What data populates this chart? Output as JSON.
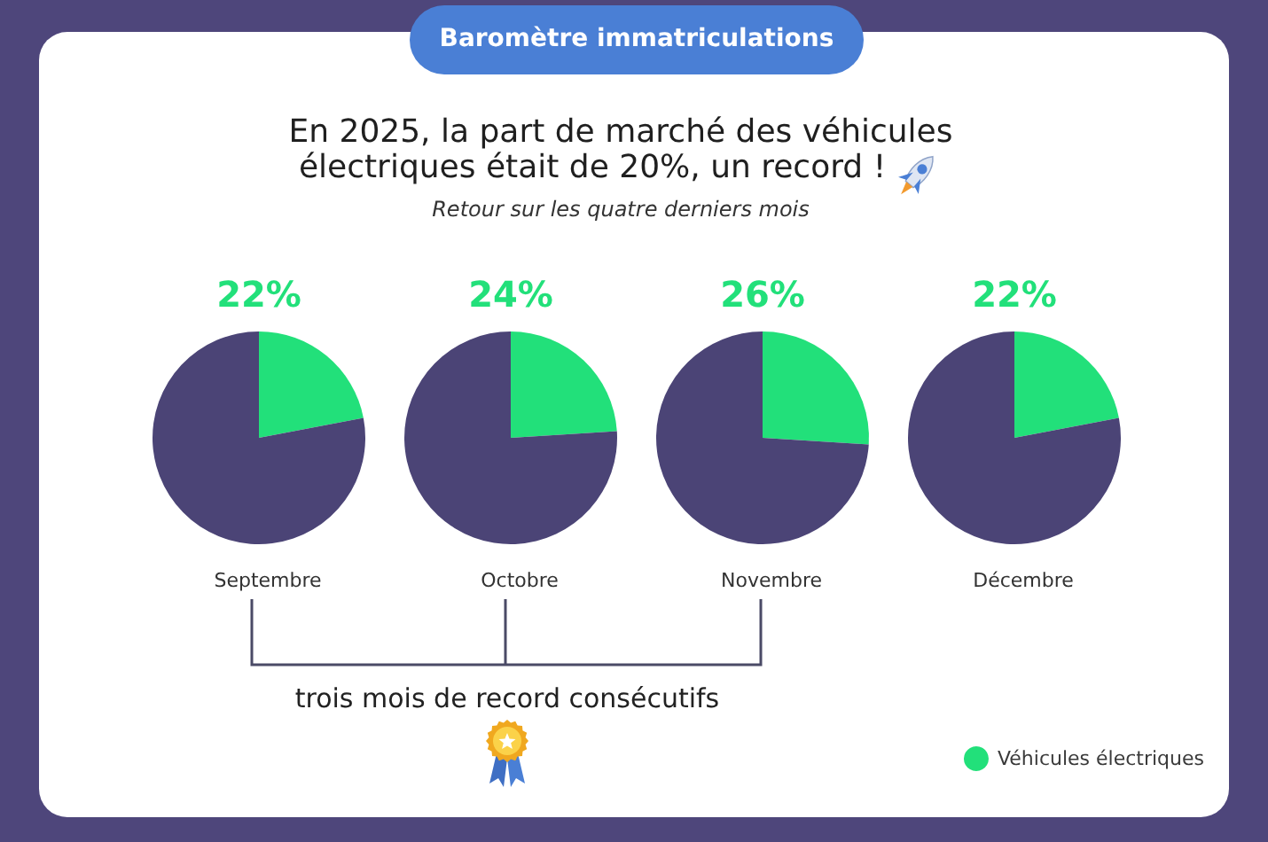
{
  "chart_data": [
    {
      "type": "other",
      "title": "Baromètre immatriculations",
      "subtitle": "En 2025, la part de marché des véhicules électriques était de 20%, un record !",
      "annotations": [
        "Retour sur les quatre derniers mois",
        "trois mois de record consécutifs"
      ]
    },
    {
      "type": "pie",
      "title": "Septembre",
      "categories": [
        null,
        null
      ],
      "values": [
        22,
        78
      ],
      "colors": [
        "#22e07a",
        "#4b4476"
      ],
      "value_labels": [
        "22%",
        null
      ]
    },
    {
      "type": "pie",
      "title": "Octobre",
      "categories": [
        null,
        null
      ],
      "values": [
        24,
        76
      ],
      "colors": [
        "#22e07a",
        "#4b4476"
      ],
      "value_labels": [
        "24%",
        null
      ]
    },
    {
      "type": "pie",
      "title": "Novembre",
      "categories": [
        null,
        null
      ],
      "values": [
        26,
        74
      ],
      "colors": [
        "#22e07a",
        "#4b4476"
      ],
      "value_labels": [
        "26%",
        null
      ]
    },
    {
      "type": "pie",
      "title": "Décembre",
      "categories": [
        "Véhicules électriques",
        null
      ],
      "values": [
        22,
        78
      ],
      "colors": [
        "#22e07a",
        "#4b4476"
      ],
      "value_labels": [
        "22%",
        null
      ],
      "legend": "bottom right"
    }
  ]
}
